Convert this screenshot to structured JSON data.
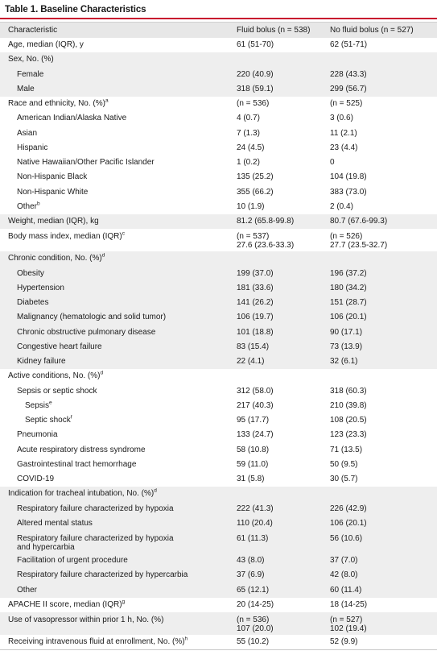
{
  "table": {
    "title": "Table 1. Baseline Characteristics",
    "headers": [
      "Characteristic",
      "Fluid bolus (n = 538)",
      "No fluid bolus (n = 527)"
    ],
    "rows": [
      {
        "label": "Age, median (IQR), y",
        "a": "61 (51-70)",
        "b": "62 (51-71)",
        "indent": 0,
        "shade": false
      },
      {
        "label": "Sex, No. (%)",
        "a": "",
        "b": "",
        "indent": 0,
        "shade": true
      },
      {
        "label": "Female",
        "a": "220 (40.9)",
        "b": "228 (43.3)",
        "indent": 1,
        "shade": true
      },
      {
        "label": "Male",
        "a": "318 (59.1)",
        "b": "299 (56.7)",
        "indent": 1,
        "shade": true
      },
      {
        "label": "Race and ethnicity, No. (%)",
        "sup": "a",
        "a": "(n = 536)",
        "b": "(n = 525)",
        "indent": 0,
        "shade": false
      },
      {
        "label": "American Indian/Alaska Native",
        "a": "4 (0.7)",
        "b": "3 (0.6)",
        "indent": 1,
        "shade": false
      },
      {
        "label": "Asian",
        "a": "7 (1.3)",
        "b": "11 (2.1)",
        "indent": 1,
        "shade": false
      },
      {
        "label": "Hispanic",
        "a": "24 (4.5)",
        "b": "23 (4.4)",
        "indent": 1,
        "shade": false
      },
      {
        "label": "Native Hawaiian/Other Pacific Islander",
        "a": "1 (0.2)",
        "b": "0",
        "indent": 1,
        "shade": false
      },
      {
        "label": "Non-Hispanic Black",
        "a": "135 (25.2)",
        "b": "104 (19.8)",
        "indent": 1,
        "shade": false
      },
      {
        "label": "Non-Hispanic White",
        "a": "355 (66.2)",
        "b": "383 (73.0)",
        "indent": 1,
        "shade": false
      },
      {
        "label": "Other",
        "sup": "b",
        "a": "10 (1.9)",
        "b": "2 (0.4)",
        "indent": 1,
        "shade": false
      },
      {
        "label": "Weight, median (IQR), kg",
        "a": "81.2 (65.8-99.8)",
        "b": "80.7 (67.6-99.3)",
        "indent": 0,
        "shade": true
      },
      {
        "label": "Body mass index, median (IQR)",
        "sup": "c",
        "a": "(n = 537)",
        "a2": "27.6 (23.6-33.3)",
        "b": "(n = 526)",
        "b2": "27.7 (23.5-32.7)",
        "indent": 0,
        "shade": false,
        "tall": true
      },
      {
        "label": "Chronic condition, No. (%)",
        "sup": "d",
        "a": "",
        "b": "",
        "indent": 0,
        "shade": true
      },
      {
        "label": "Obesity",
        "a": "199 (37.0)",
        "b": "196 (37.2)",
        "indent": 1,
        "shade": true
      },
      {
        "label": "Hypertension",
        "a": "181 (33.6)",
        "b": "180 (34.2)",
        "indent": 1,
        "shade": true
      },
      {
        "label": "Diabetes",
        "a": "141 (26.2)",
        "b": "151 (28.7)",
        "indent": 1,
        "shade": true
      },
      {
        "label": "Malignancy (hematologic and solid tumor)",
        "a": "106 (19.7)",
        "b": "106 (20.1)",
        "indent": 1,
        "shade": true
      },
      {
        "label": "Chronic obstructive pulmonary disease",
        "a": "101 (18.8)",
        "b": "90 (17.1)",
        "indent": 1,
        "shade": true
      },
      {
        "label": "Congestive heart failure",
        "a": "83 (15.4)",
        "b": "73 (13.9)",
        "indent": 1,
        "shade": true
      },
      {
        "label": "Kidney failure",
        "a": "22 (4.1)",
        "b": "32 (6.1)",
        "indent": 1,
        "shade": true
      },
      {
        "label": "Active conditions, No. (%)",
        "sup": "d",
        "a": "",
        "b": "",
        "indent": 0,
        "shade": false
      },
      {
        "label": "Sepsis or septic shock",
        "a": "312 (58.0)",
        "b": "318 (60.3)",
        "indent": 1,
        "shade": false
      },
      {
        "label": "Sepsis",
        "sup": "e",
        "a": "217 (40.3)",
        "b": "210 (39.8)",
        "indent": 2,
        "shade": false
      },
      {
        "label": "Septic shock",
        "sup": "f",
        "a": "95 (17.7)",
        "b": "108 (20.5)",
        "indent": 2,
        "shade": false
      },
      {
        "label": "Pneumonia",
        "a": "133 (24.7)",
        "b": "123 (23.3)",
        "indent": 1,
        "shade": false
      },
      {
        "label": "Acute respiratory distress syndrome",
        "a": "58 (10.8)",
        "b": "71 (13.5)",
        "indent": 1,
        "shade": false
      },
      {
        "label": "Gastrointestinal tract hemorrhage",
        "a": "59 (11.0)",
        "b": "50 (9.5)",
        "indent": 1,
        "shade": false
      },
      {
        "label": "COVID-19",
        "a": "31 (5.8)",
        "b": "30 (5.7)",
        "indent": 1,
        "shade": false
      },
      {
        "label": "Indication for tracheal intubation, No. (%)",
        "sup": "d",
        "a": "",
        "b": "",
        "indent": 0,
        "shade": true
      },
      {
        "label": "Respiratory failure characterized by hypoxia",
        "a": "222 (41.3)",
        "b": "226 (42.9)",
        "indent": 1,
        "shade": true
      },
      {
        "label": "Altered mental status",
        "a": "110 (20.4)",
        "b": "106 (20.1)",
        "indent": 1,
        "shade": true
      },
      {
        "label": "Respiratory failure characterized by hypoxia",
        "label2": "and hypercarbia",
        "a": "61 (11.3)",
        "b": "56 (10.6)",
        "indent": 1,
        "shade": true,
        "tall": true
      },
      {
        "label": "Facilitation of urgent procedure",
        "a": "43 (8.0)",
        "b": "37 (7.0)",
        "indent": 1,
        "shade": true
      },
      {
        "label": "Respiratory failure characterized by hypercarbia",
        "a": "37 (6.9)",
        "b": "42 (8.0)",
        "indent": 1,
        "shade": true
      },
      {
        "label": "Other",
        "a": "65 (12.1)",
        "b": "60 (11.4)",
        "indent": 1,
        "shade": true
      },
      {
        "label": "APACHE II score, median (IQR)",
        "sup": "g",
        "a": "20 (14-25)",
        "b": "18 (14-25)",
        "indent": 0,
        "shade": false
      },
      {
        "label": "Use of vasopressor within prior 1 h, No. (%)",
        "a": "(n = 536)",
        "a2": "107 (20.0)",
        "b": "(n = 527)",
        "b2": "102 (19.4)",
        "indent": 0,
        "shade": true,
        "tall": true
      },
      {
        "label": "Receiving intravenous fluid at enrollment, No. (%)",
        "sup": "h",
        "a": "55 (10.2)",
        "b": "52 (9.9)",
        "indent": 0,
        "shade": false
      }
    ]
  }
}
